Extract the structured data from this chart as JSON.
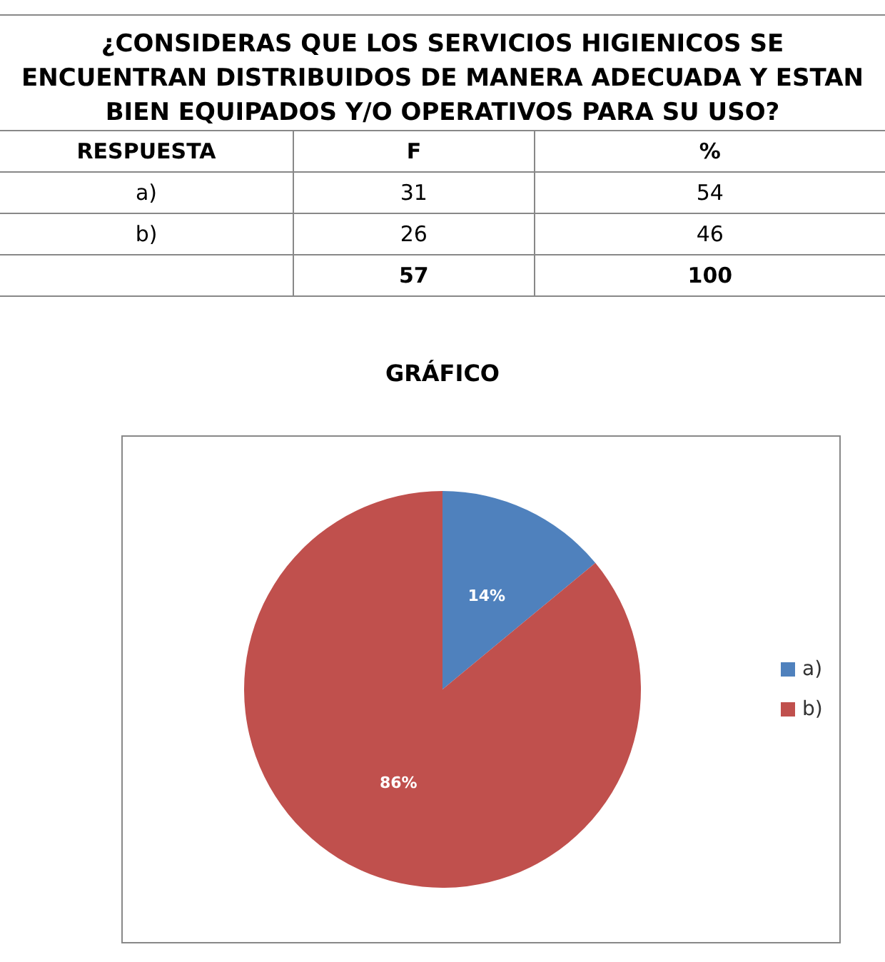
{
  "chart_data": [
    {
      "type": "other",
      "title": "¿CONSIDERAS QUE LOS SERVICIOS HIGIENICOS SE ENCUENTRAN DISTRIBUIDOS DE MANERA ADECUADA Y ESTAN BIEN EQUIPADOS Y/O OPERATIVOS PARA SU USO?",
      "xlabel": "RESPUESTA",
      "categories": [
        "a)",
        "b)"
      ],
      "series": [
        {
          "name": "F",
          "values": [
            31,
            26
          ]
        },
        {
          "name": "%",
          "values": [
            54,
            46
          ]
        }
      ],
      "totals": [
        "57",
        "100"
      ],
      "data_labels": true
    },
    {
      "type": "pie",
      "title": "GRÁFICO",
      "categories": [
        "a)",
        "b)"
      ],
      "values": [
        14,
        86
      ],
      "colors": [
        "#4f81bd",
        "#c0504d"
      ],
      "value_labels": [
        "14%",
        "86%"
      ],
      "legend": "right"
    }
  ]
}
